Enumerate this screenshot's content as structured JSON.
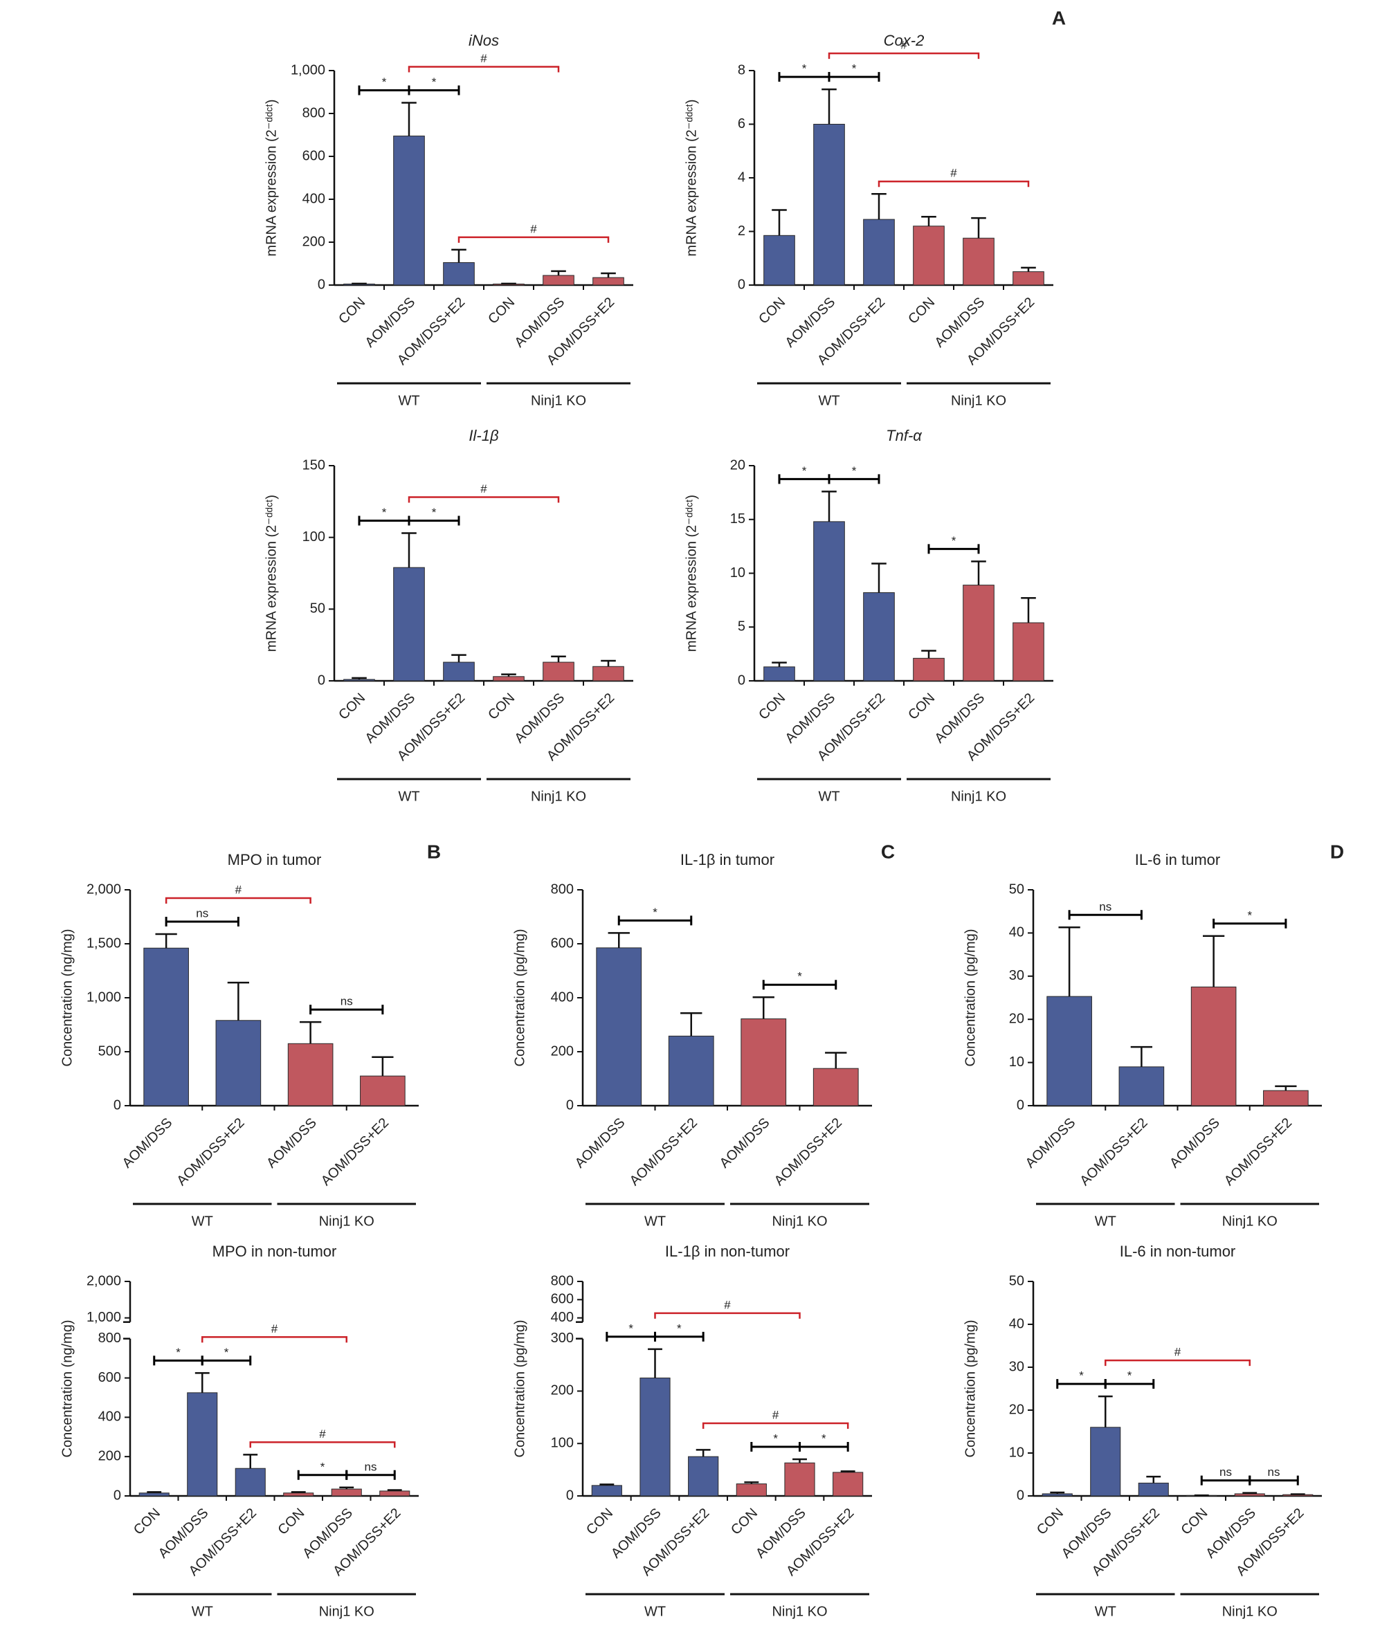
{
  "panel_labels": [
    "A",
    "B",
    "C",
    "D"
  ],
  "chart_data": [
    {
      "type": "bar",
      "title": "iNos",
      "title_italic": true,
      "ylabel": "mRNA expression (2⁻ᵈᵈᶜᵗ)",
      "categories": [
        "CON",
        "AOM/DSS",
        "AOM/DSS+E2",
        "CON",
        "AOM/DSS",
        "AOM/DSS+E2"
      ],
      "values": [
        5,
        695,
        105,
        5,
        45,
        35
      ],
      "errors": [
        2,
        155,
        60,
        2,
        20,
        20
      ],
      "colors": [
        "#4b5e97",
        "#4b5e97",
        "#4b5e97",
        "#c0585f",
        "#c0585f",
        "#c0585f"
      ],
      "groups": [
        "WT",
        "Ninj1 KO"
      ],
      "ylim": [
        0,
        1000
      ],
      "yticks": [
        0,
        200,
        400,
        600,
        800,
        {
          "value": 1000,
          "label": "1,000"
        }
      ],
      "annotations": [
        {
          "label": "*",
          "from": 0,
          "to": 1,
          "color": "#000000"
        },
        {
          "label": "*",
          "from": 1,
          "to": 2,
          "color": "#000000"
        },
        {
          "label": "#",
          "from": 1,
          "to": 4,
          "color": "#cc2229"
        },
        {
          "label": "#",
          "from": 2,
          "to": 5,
          "color": "#cc2229"
        }
      ]
    },
    {
      "type": "bar",
      "title": "Cox-2",
      "title_italic": true,
      "ylabel": "mRNA expression (2⁻ᵈᵈᶜᵗ)",
      "categories": [
        "CON",
        "AOM/DSS",
        "AOM/DSS+E2",
        "CON",
        "AOM/DSS",
        "AOM/DSS+E2"
      ],
      "values": [
        1.85,
        6.0,
        2.45,
        2.2,
        1.75,
        0.5
      ],
      "errors": [
        0.95,
        1.3,
        0.95,
        0.35,
        0.75,
        0.15
      ],
      "colors": [
        "#4b5e97",
        "#4b5e97",
        "#4b5e97",
        "#c0585f",
        "#c0585f",
        "#c0585f"
      ],
      "groups": [
        "WT",
        "Ninj1 KO"
      ],
      "ylim": [
        0,
        8
      ],
      "yticks": [
        0,
        2,
        4,
        6,
        8
      ],
      "annotations": [
        {
          "label": "*",
          "from": 0,
          "to": 1,
          "color": "#000000"
        },
        {
          "label": "*",
          "from": 1,
          "to": 2,
          "color": "#000000"
        },
        {
          "label": "#",
          "from": 1,
          "to": 4,
          "color": "#cc2229"
        },
        {
          "label": "#",
          "from": 2,
          "to": 5,
          "color": "#cc2229"
        }
      ]
    },
    {
      "type": "bar",
      "title": "Il-1β",
      "title_italic": true,
      "ylabel": "mRNA expression (2⁻ᵈᵈᶜᵗ)",
      "categories": [
        "CON",
        "AOM/DSS",
        "AOM/DSS+E2",
        "CON",
        "AOM/DSS",
        "AOM/DSS+E2"
      ],
      "values": [
        1,
        79,
        13,
        3,
        13,
        10
      ],
      "errors": [
        1,
        24,
        5,
        1.5,
        4,
        4
      ],
      "colors": [
        "#4b5e97",
        "#4b5e97",
        "#4b5e97",
        "#c0585f",
        "#c0585f",
        "#c0585f"
      ],
      "groups": [
        "WT",
        "Ninj1 KO"
      ],
      "ylim": [
        0,
        150
      ],
      "yticks": [
        0,
        50,
        100,
        150
      ],
      "annotations": [
        {
          "label": "*",
          "from": 0,
          "to": 1,
          "color": "#000000"
        },
        {
          "label": "*",
          "from": 1,
          "to": 2,
          "color": "#000000"
        },
        {
          "label": "#",
          "from": 1,
          "to": 4,
          "color": "#cc2229"
        }
      ]
    },
    {
      "type": "bar",
      "title": "Tnf-α",
      "title_italic": true,
      "ylabel": "mRNA expression (2⁻ᵈᵈᶜᵗ)",
      "categories": [
        "CON",
        "AOM/DSS",
        "AOM/DSS+E2",
        "CON",
        "AOM/DSS",
        "AOM/DSS+E2"
      ],
      "values": [
        1.3,
        14.8,
        8.2,
        2.1,
        8.9,
        5.4
      ],
      "errors": [
        0.4,
        2.8,
        2.7,
        0.7,
        2.2,
        2.3
      ],
      "colors": [
        "#4b5e97",
        "#4b5e97",
        "#4b5e97",
        "#c0585f",
        "#c0585f",
        "#c0585f"
      ],
      "groups": [
        "WT",
        "Ninj1 KO"
      ],
      "ylim": [
        0,
        20
      ],
      "yticks": [
        0,
        5,
        10,
        15,
        20
      ],
      "annotations": [
        {
          "label": "*",
          "from": 0,
          "to": 1,
          "color": "#000000"
        },
        {
          "label": "*",
          "from": 1,
          "to": 2,
          "color": "#000000"
        },
        {
          "label": "*",
          "from": 3,
          "to": 4,
          "color": "#000000"
        }
      ]
    },
    {
      "type": "bar",
      "title": "MPO in tumor",
      "title_italic": false,
      "ylabel": "Concentration (ng/mg)",
      "categories": [
        "AOM/DSS",
        "AOM/DSS+E2",
        "AOM/DSS",
        "AOM/DSS+E2"
      ],
      "values": [
        1460,
        790,
        575,
        275
      ],
      "errors": [
        130,
        350,
        200,
        175
      ],
      "colors": [
        "#4b5e97",
        "#4b5e97",
        "#c0585f",
        "#c0585f"
      ],
      "groups": [
        "WT",
        "Ninj1 KO"
      ],
      "ylim": [
        0,
        2000
      ],
      "yticks": [
        0,
        500,
        {
          "value": 1000,
          "label": "1,000"
        },
        {
          "value": 1500,
          "label": "1,500"
        },
        {
          "value": 2000,
          "label": "2,000"
        }
      ],
      "annotations": [
        {
          "label": "ns",
          "from": 0,
          "to": 1,
          "color": "#000000"
        },
        {
          "label": "ns",
          "from": 2,
          "to": 3,
          "color": "#000000"
        },
        {
          "label": "#",
          "from": 0,
          "to": 2,
          "color": "#cc2229"
        }
      ]
    },
    {
      "type": "bar",
      "title": "IL-1β in tumor",
      "title_italic": false,
      "ylabel": "Concentration (pg/mg)",
      "categories": [
        "AOM/DSS",
        "AOM/DSS+E2",
        "AOM/DSS",
        "AOM/DSS+E2"
      ],
      "values": [
        585,
        258,
        322,
        138
      ],
      "errors": [
        55,
        85,
        80,
        58
      ],
      "colors": [
        "#4b5e97",
        "#4b5e97",
        "#c0585f",
        "#c0585f"
      ],
      "groups": [
        "WT",
        "Ninj1 KO"
      ],
      "ylim": [
        0,
        800
      ],
      "yticks": [
        0,
        200,
        400,
        600,
        800
      ],
      "annotations": [
        {
          "label": "*",
          "from": 0,
          "to": 1,
          "color": "#000000"
        },
        {
          "label": "*",
          "from": 2,
          "to": 3,
          "color": "#000000"
        }
      ]
    },
    {
      "type": "bar",
      "title": "IL-6 in tumor",
      "title_italic": false,
      "ylabel": "Concentration (pg/mg)",
      "categories": [
        "AOM/DSS",
        "AOM/DSS+E2",
        "AOM/DSS",
        "AOM/DSS+E2"
      ],
      "values": [
        25.3,
        9.0,
        27.5,
        3.5
      ],
      "errors": [
        16,
        4.6,
        11.8,
        1
      ],
      "colors": [
        "#4b5e97",
        "#4b5e97",
        "#c0585f",
        "#c0585f"
      ],
      "groups": [
        "WT",
        "Ninj1 KO"
      ],
      "ylim": [
        0,
        50
      ],
      "yticks": [
        0,
        10,
        20,
        30,
        40,
        50
      ],
      "annotations": [
        {
          "label": "ns",
          "from": 0,
          "to": 1,
          "color": "#000000"
        },
        {
          "label": "*",
          "from": 2,
          "to": 3,
          "color": "#000000"
        }
      ]
    },
    {
      "type": "bar",
      "title": "MPO in non-tumor",
      "title_italic": false,
      "ylabel": "Concentration (ng/mg)",
      "categories": [
        "CON",
        "AOM/DSS",
        "AOM/DSS+E2",
        "CON",
        "AOM/DSS",
        "AOM/DSS+E2"
      ],
      "values": [
        15,
        525,
        140,
        15,
        35,
        25
      ],
      "errors": [
        5,
        100,
        70,
        5,
        8,
        5
      ],
      "colors": [
        "#4b5e97",
        "#4b5e97",
        "#4b5e97",
        "#c0585f",
        "#c0585f",
        "#c0585f"
      ],
      "groups": [
        "WT",
        "Ninj1 KO"
      ],
      "ylim": [
        0,
        800
      ],
      "yticks": [
        0,
        200,
        400,
        600,
        800
      ],
      "ylim_upper": [
        1000,
        2000
      ],
      "yticks_upper": [
        {
          "value": 1000,
          "label": "1,000"
        },
        {
          "value": 2000,
          "label": "2,000"
        }
      ],
      "annotations": [
        {
          "label": "*",
          "from": 0,
          "to": 1,
          "color": "#000000"
        },
        {
          "label": "*",
          "from": 1,
          "to": 2,
          "color": "#000000"
        },
        {
          "label": "*",
          "from": 3,
          "to": 4,
          "color": "#000000"
        },
        {
          "label": "ns",
          "from": 4,
          "to": 5,
          "color": "#000000"
        },
        {
          "label": "#",
          "from": 1,
          "to": 4,
          "color": "#cc2229"
        },
        {
          "label": "#",
          "from": 2,
          "to": 5,
          "color": "#cc2229"
        }
      ]
    },
    {
      "type": "bar",
      "title": "IL-1β in non-tumor",
      "title_italic": false,
      "ylabel": "Concentration (pg/mg)",
      "categories": [
        "CON",
        "AOM/DSS",
        "AOM/DSS+E2",
        "CON",
        "AOM/DSS",
        "AOM/DSS+E2"
      ],
      "values": [
        20,
        225,
        75,
        23,
        63,
        45
      ],
      "errors": [
        2,
        55,
        13,
        3,
        7,
        2
      ],
      "colors": [
        "#4b5e97",
        "#4b5e97",
        "#4b5e97",
        "#c0585f",
        "#c0585f",
        "#c0585f"
      ],
      "groups": [
        "WT",
        "Ninj1 KO"
      ],
      "ylim": [
        0,
        300
      ],
      "yticks": [
        0,
        100,
        200,
        300
      ],
      "ylim_upper": [
        400,
        800
      ],
      "yticks_upper": [
        400,
        600,
        800
      ],
      "annotations": [
        {
          "label": "*",
          "from": 0,
          "to": 1,
          "color": "#000000"
        },
        {
          "label": "*",
          "from": 1,
          "to": 2,
          "color": "#000000"
        },
        {
          "label": "*",
          "from": 3,
          "to": 4,
          "color": "#000000"
        },
        {
          "label": "*",
          "from": 4,
          "to": 5,
          "color": "#000000"
        },
        {
          "label": "#",
          "from": 1,
          "to": 4,
          "color": "#cc2229"
        },
        {
          "label": "#",
          "from": 2,
          "to": 5,
          "color": "#cc2229"
        }
      ]
    },
    {
      "type": "bar",
      "title": "IL-6 in non-tumor",
      "title_italic": false,
      "ylabel": "Concentration (pg/mg)",
      "categories": [
        "CON",
        "AOM/DSS",
        "AOM/DSS+E2",
        "CON",
        "AOM/DSS",
        "AOM/DSS+E2"
      ],
      "values": [
        0.5,
        16,
        3,
        0.1,
        0.5,
        0.3
      ],
      "errors": [
        0.3,
        7.2,
        1.5,
        0.05,
        0.2,
        0.1
      ],
      "colors": [
        "#4b5e97",
        "#4b5e97",
        "#4b5e97",
        "#c0585f",
        "#c0585f",
        "#c0585f"
      ],
      "groups": [
        "WT",
        "Ninj1 KO"
      ],
      "ylim": [
        0,
        50
      ],
      "yticks": [
        0,
        10,
        20,
        30,
        40,
        50
      ],
      "annotations": [
        {
          "label": "*",
          "from": 0,
          "to": 1,
          "color": "#000000"
        },
        {
          "label": "*",
          "from": 1,
          "to": 2,
          "color": "#000000"
        },
        {
          "label": "ns",
          "from": 3,
          "to": 4,
          "color": "#000000"
        },
        {
          "label": "ns",
          "from": 4,
          "to": 5,
          "color": "#000000"
        },
        {
          "label": "#",
          "from": 1,
          "to": 4,
          "color": "#cc2229"
        }
      ]
    }
  ]
}
